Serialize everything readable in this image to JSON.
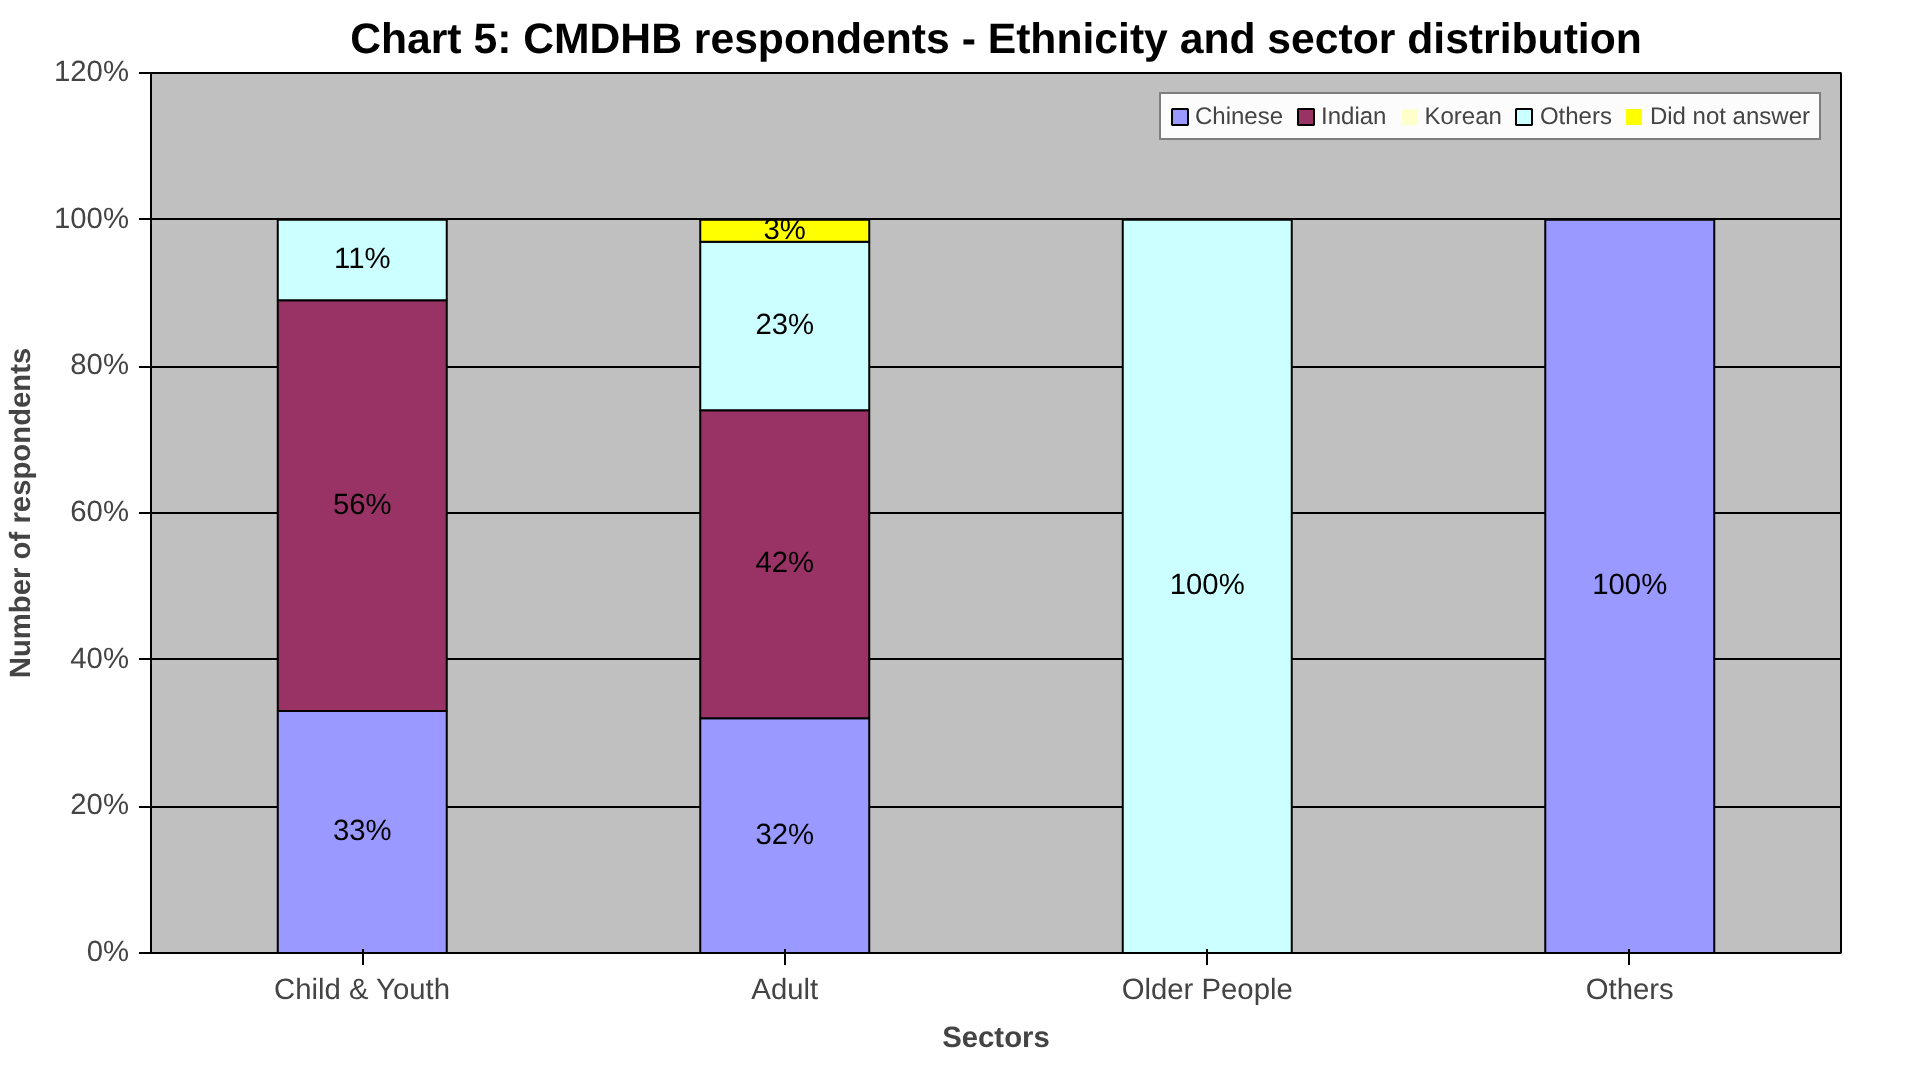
{
  "chart_data": {
    "type": "bar",
    "stacked": true,
    "title": "Chart 5: CMDHB respondents - Ethnicity and sector distribution",
    "xlabel": "Sectors",
    "ylabel": "Number of respondents",
    "categories": [
      "Child & Youth",
      "Adult",
      "Older People",
      "Others"
    ],
    "series": [
      {
        "name": "Chinese",
        "color": "#9999ff",
        "values": [
          33,
          32,
          0,
          100
        ],
        "value_labels": [
          "33%",
          "32%",
          null,
          "100%"
        ]
      },
      {
        "name": "Indian",
        "color": "#993366",
        "values": [
          56,
          42,
          0,
          0
        ],
        "value_labels": [
          "56%",
          "42%",
          null,
          null
        ]
      },
      {
        "name": "Korean",
        "color": "#ffffcc",
        "values": [
          0,
          0,
          0,
          0
        ],
        "value_labels": [
          null,
          null,
          null,
          null
        ]
      },
      {
        "name": "Others",
        "color": "#ccffff",
        "values": [
          11,
          23,
          100,
          0
        ],
        "value_labels": [
          "11%",
          "23%",
          "100%",
          null
        ]
      },
      {
        "name": "Did not answer",
        "color": "#ffff00",
        "values": [
          0,
          3,
          0,
          0
        ],
        "value_labels": [
          null,
          "3%",
          null,
          null
        ]
      }
    ],
    "ylim": [
      0,
      120
    ],
    "yticks": [
      {
        "value": 0,
        "label": "0%"
      },
      {
        "value": 20,
        "label": "20%"
      },
      {
        "value": 40,
        "label": "40%"
      },
      {
        "value": 60,
        "label": "60%"
      },
      {
        "value": 80,
        "label": "80%"
      },
      {
        "value": 100,
        "label": "100%"
      },
      {
        "value": 120,
        "label": "120%"
      }
    ],
    "grid": "y",
    "legend": "top right"
  }
}
